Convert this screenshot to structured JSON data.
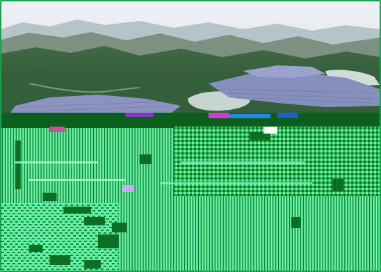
{
  "image": {
    "subject": "aerial-view",
    "elements": [
      "sky",
      "mountains",
      "forest-hills",
      "solar-panel-field",
      "reservoir-water",
      "corrupted-image-region"
    ]
  },
  "colors": {
    "border": "#16a34a",
    "sky": "#e6ecef",
    "far_mountain": "#a9b8bf",
    "mid_mountain": "#6f8779",
    "forest": "#2f5a33",
    "forest_light": "#496f41",
    "solar": "#7f8ab8",
    "water": "#c8d6d2",
    "glitch_dark": "#0b6e20",
    "glitch_mid": "#3fd06a",
    "glitch_light": "#6ff0b0"
  }
}
